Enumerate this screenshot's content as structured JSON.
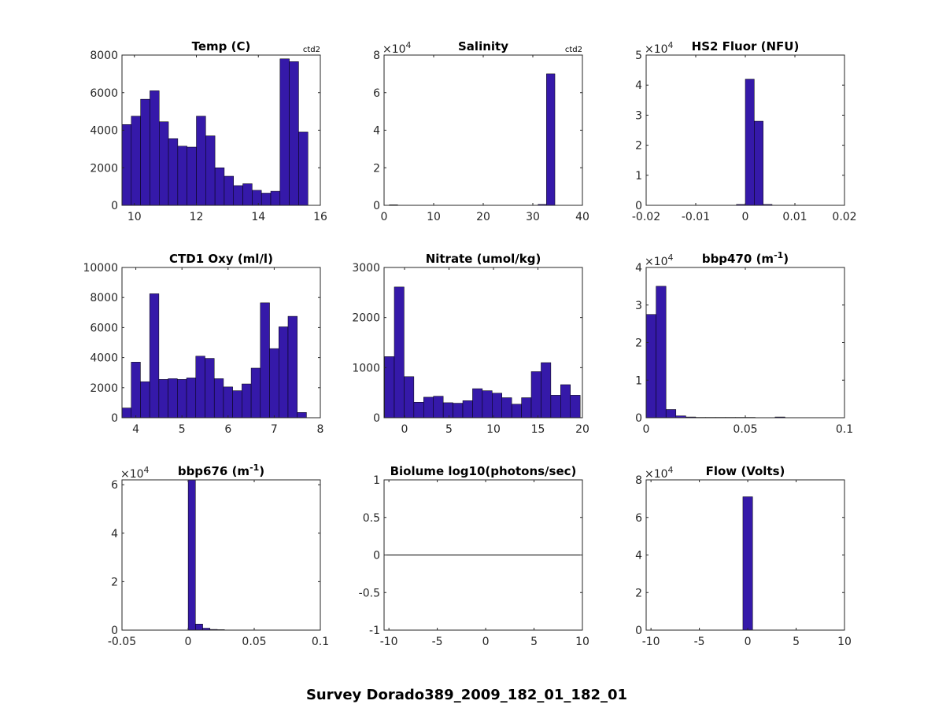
{
  "figure": {
    "title": "Survey Dorado389_2009_182_01_182_01"
  },
  "colors": {
    "bar": "#3519a9",
    "axis": "#262626",
    "line": "#000000",
    "background": "#ffffff"
  },
  "chart_data": [
    {
      "type": "bar",
      "title": "Temp (C)",
      "corner_label": "ctd2",
      "xlim": [
        9.6,
        16
      ],
      "xticks": [
        10,
        12,
        14,
        16
      ],
      "ylim": [
        0,
        8000
      ],
      "yticks": [
        0,
        2000,
        4000,
        6000,
        8000
      ],
      "ytick_labels": [
        "0",
        "2000",
        "4000",
        "6000",
        "8000"
      ],
      "exponent": "",
      "bin_width": 0.3,
      "bin_centers": [
        9.75,
        10.05,
        10.35,
        10.65,
        10.95,
        11.25,
        11.55,
        11.85,
        12.15,
        12.45,
        12.75,
        13.05,
        13.35,
        13.65,
        13.95,
        14.25,
        14.55,
        14.85,
        15.15,
        15.45
      ],
      "values": [
        4300,
        4750,
        5650,
        6100,
        4450,
        3550,
        3150,
        3100,
        4750,
        3700,
        2000,
        1550,
        1050,
        1150,
        800,
        650,
        750,
        7800,
        7650,
        3900
      ]
    },
    {
      "type": "bar",
      "title": "Salinity",
      "corner_label": "ctd2",
      "xlim": [
        0,
        40
      ],
      "xticks": [
        0,
        10,
        20,
        30,
        40
      ],
      "ylim": [
        0,
        8
      ],
      "yticks": [
        0,
        2,
        4,
        6,
        8
      ],
      "ytick_labels": [
        "0",
        "2",
        "4",
        "6",
        "8"
      ],
      "exponent": "4",
      "bin_width": 1.7,
      "bin_centers": [
        1.9,
        31.9,
        33.6
      ],
      "values": [
        0.03,
        0.05,
        7.0
      ]
    },
    {
      "type": "bar",
      "title": "HS2 Fluor (NFU)",
      "corner_label": "",
      "xlim": [
        -0.02,
        0.02
      ],
      "xticks": [
        -0.02,
        -0.01,
        0,
        0.01,
        0.02
      ],
      "ylim": [
        0,
        5
      ],
      "yticks": [
        0,
        1,
        2,
        3,
        4,
        5
      ],
      "ytick_labels": [
        "0",
        "1",
        "2",
        "3",
        "4",
        "5"
      ],
      "exponent": "4",
      "bin_width": 0.0018,
      "bin_centers": [
        -0.0009,
        0.0009,
        0.0027,
        0.0045
      ],
      "values": [
        0.03,
        4.2,
        2.8,
        0.03
      ]
    },
    {
      "type": "bar",
      "title": "CTD1 Oxy (ml/l)",
      "corner_label": "",
      "xlim": [
        3.7,
        8
      ],
      "xticks": [
        4,
        5,
        6,
        7,
        8
      ],
      "ylim": [
        0,
        10000
      ],
      "yticks": [
        0,
        2000,
        4000,
        6000,
        8000,
        10000
      ],
      "ytick_labels": [
        "0",
        "2000",
        "4000",
        "6000",
        "8000",
        "10000"
      ],
      "exponent": "",
      "bin_width": 0.2,
      "bin_centers": [
        3.8,
        4.0,
        4.2,
        4.4,
        4.6,
        4.8,
        5.0,
        5.2,
        5.4,
        5.6,
        5.8,
        6.0,
        6.2,
        6.4,
        6.6,
        6.8,
        7.0,
        7.2,
        7.4,
        7.6
      ],
      "values": [
        650,
        3700,
        2400,
        8250,
        2550,
        2600,
        2550,
        2650,
        4100,
        3950,
        2600,
        2050,
        1800,
        2250,
        3300,
        7650,
        4600,
        6050,
        6750,
        350
      ]
    },
    {
      "type": "bar",
      "title": "Nitrate (umol/kg)",
      "corner_label": "",
      "xlim": [
        -2.3,
        20
      ],
      "xticks": [
        0,
        5,
        10,
        15,
        20
      ],
      "ylim": [
        0,
        3000
      ],
      "yticks": [
        0,
        1000,
        2000,
        3000
      ],
      "ytick_labels": [
        "0",
        "1000",
        "2000",
        "3000"
      ],
      "exponent": "",
      "bin_width": 1.1,
      "bin_centers": [
        -1.7,
        -0.6,
        0.5,
        1.6,
        2.7,
        3.8,
        4.9,
        6.0,
        7.1,
        8.2,
        9.3,
        10.4,
        11.5,
        12.6,
        13.7,
        14.8,
        15.9,
        17.0,
        18.1,
        19.2
      ],
      "values": [
        1220,
        2610,
        820,
        310,
        410,
        430,
        300,
        290,
        340,
        580,
        540,
        490,
        400,
        270,
        400,
        920,
        1100,
        450,
        660,
        450
      ]
    },
    {
      "type": "bar",
      "title": "bbp470 (m",
      "title_sup": "-1",
      "title_tail": ")",
      "corner_label": "",
      "xlim": [
        0,
        0.1
      ],
      "xticks": [
        0,
        0.05,
        0.1
      ],
      "ylim": [
        0,
        4
      ],
      "yticks": [
        0,
        1,
        2,
        3,
        4
      ],
      "ytick_labels": [
        "0",
        "1",
        "2",
        "3",
        "4"
      ],
      "exponent": "4",
      "bin_width": 0.005,
      "bin_centers": [
        0.0025,
        0.0075,
        0.0125,
        0.0175,
        0.0225,
        0.0275,
        0.0325,
        0.0375,
        0.0425,
        0.0475,
        0.0525,
        0.0575,
        0.0625,
        0.0675
      ],
      "values": [
        2.75,
        3.5,
        0.22,
        0.05,
        0.02,
        0.01,
        0.01,
        0.01,
        0.01,
        0.01,
        0.01,
        0.0,
        0.0,
        0.02
      ]
    },
    {
      "type": "bar",
      "title": "bbp676 (m",
      "title_sup": "-1",
      "title_tail": ")",
      "corner_label": "",
      "xlim": [
        -0.05,
        0.1
      ],
      "xticks": [
        -0.05,
        0,
        0.05,
        0.1
      ],
      "ylim": [
        0,
        6.2
      ],
      "yticks": [
        0,
        2,
        4,
        6
      ],
      "ytick_labels": [
        "0",
        "2",
        "4",
        "6"
      ],
      "exponent": "4",
      "bin_width": 0.0055,
      "bin_centers": [
        0.0028,
        0.0083,
        0.0138,
        0.0193,
        0.0248
      ],
      "values": [
        6.2,
        0.25,
        0.08,
        0.03,
        0.02
      ]
    },
    {
      "type": "line",
      "title": "Biolume log10(photons/sec)",
      "corner_label": "",
      "xlim": [
        -10.5,
        10
      ],
      "xticks": [
        -10,
        -5,
        0,
        5,
        10
      ],
      "ylim": [
        -1,
        1
      ],
      "yticks": [
        -1,
        -0.5,
        0,
        0.5,
        1
      ],
      "ytick_labels": [
        "-1",
        "-0.5",
        "0",
        "0.5",
        "1"
      ],
      "exponent": "",
      "line_y": 0
    },
    {
      "type": "bar",
      "title": "Flow (Volts)",
      "corner_label": "",
      "xlim": [
        -10.5,
        10
      ],
      "xticks": [
        -10,
        -5,
        0,
        5,
        10
      ],
      "ylim": [
        0,
        8
      ],
      "yticks": [
        0,
        2,
        4,
        6,
        8
      ],
      "ytick_labels": [
        "0",
        "2",
        "4",
        "6",
        "8"
      ],
      "exponent": "4",
      "bin_width": 1.0,
      "bin_centers": [
        0
      ],
      "values": [
        7.1
      ]
    }
  ]
}
